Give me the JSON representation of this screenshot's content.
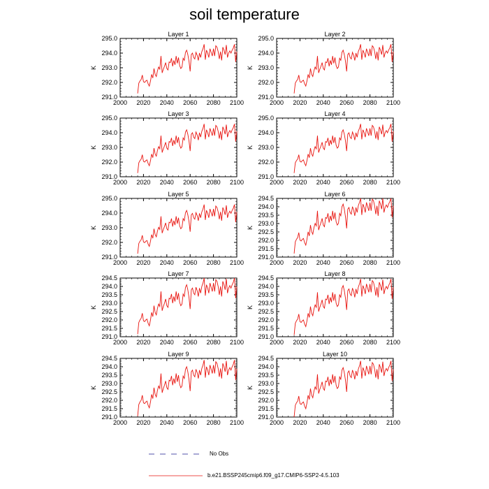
{
  "title": "soil temperature",
  "chart_data": {
    "type": "line",
    "title": "soil temperature",
    "ylabel": "K",
    "xlim": [
      2000,
      2100
    ],
    "xticks": [
      "2000",
      "2020",
      "2040",
      "2060",
      "2080",
      "2100"
    ],
    "x": [
      2015,
      2016,
      2017,
      2018,
      2019,
      2020,
      2021,
      2022,
      2023,
      2024,
      2025,
      2026,
      2027,
      2028,
      2029,
      2030,
      2031,
      2032,
      2033,
      2034,
      2035,
      2036,
      2037,
      2038,
      2039,
      2040,
      2041,
      2042,
      2043,
      2044,
      2045,
      2046,
      2047,
      2048,
      2049,
      2050,
      2051,
      2052,
      2053,
      2054,
      2055,
      2056,
      2057,
      2058,
      2059,
      2060,
      2061,
      2062,
      2063,
      2064,
      2065,
      2066,
      2067,
      2068,
      2069,
      2070,
      2071,
      2072,
      2073,
      2074,
      2075,
      2076,
      2077,
      2078,
      2079,
      2080,
      2081,
      2082,
      2083,
      2084,
      2085,
      2086,
      2087,
      2088,
      2089,
      2090,
      2091,
      2092,
      2093,
      2094,
      2095,
      2096,
      2097,
      2098,
      2099,
      2100
    ],
    "base_curve": [
      291.25,
      291.95,
      292.1,
      292.2,
      292.5,
      292.05,
      292.0,
      292.1,
      292.15,
      291.9,
      291.75,
      292.1,
      292.55,
      292.3,
      292.95,
      292.55,
      292.4,
      292.8,
      293.05,
      292.9,
      293.8,
      292.65,
      292.9,
      293.1,
      293.35,
      292.95,
      292.85,
      293.4,
      293.35,
      293.65,
      293.1,
      293.5,
      293.2,
      293.8,
      293.3,
      293.7,
      293.15,
      292.95,
      293.05,
      293.65,
      293.5,
      294.05,
      294.2,
      293.9,
      293.45,
      292.75,
      293.9,
      294.0,
      293.7,
      293.6,
      294.05,
      293.85,
      293.5,
      294.0,
      293.7,
      294.1,
      294.3,
      294.6,
      293.55,
      294.2,
      294.0,
      293.7,
      294.3,
      294.05,
      293.8,
      294.3,
      293.8,
      294.5,
      294.4,
      294.1,
      293.6,
      294.1,
      293.5,
      294.4,
      294.2,
      293.9,
      294.55,
      293.7,
      294.0,
      294.15,
      294.0,
      294.2,
      294.35,
      294.6,
      293.4,
      294.1
    ],
    "series": [
      {
        "name": "b.e21.BSSP245cmip6.f09_g17.CMIP6-SSP2-4.5.103",
        "color": "#e8140f"
      },
      {
        "name": "No Obs",
        "color": "#1a1a8c",
        "dashed": true
      }
    ],
    "panels": [
      {
        "title": "Layer 1",
        "ylim": [
          291.0,
          295.0
        ],
        "yticks": [
          "291.0",
          "292.0",
          "293.0",
          "294.0",
          "295.0"
        ],
        "offset": 0.0
      },
      {
        "title": "Layer 2",
        "ylim": [
          291.0,
          295.0
        ],
        "yticks": [
          "291.0",
          "292.0",
          "293.0",
          "294.0",
          "295.0"
        ],
        "offset": 0.0
      },
      {
        "title": "Layer 3",
        "ylim": [
          291.0,
          295.0
        ],
        "yticks": [
          "291.0",
          "292.0",
          "293.0",
          "294.0",
          "295.0"
        ],
        "offset": 0.0
      },
      {
        "title": "Layer 4",
        "ylim": [
          291.0,
          295.0
        ],
        "yticks": [
          "291.0",
          "292.0",
          "293.0",
          "294.0",
          "295.0"
        ],
        "offset": 0.0
      },
      {
        "title": "Layer 5",
        "ylim": [
          291.0,
          295.0
        ],
        "yticks": [
          "291.0",
          "292.0",
          "293.0",
          "294.0",
          "295.0"
        ],
        "offset": -0.02
      },
      {
        "title": "Layer 6",
        "ylim": [
          291.0,
          294.5
        ],
        "yticks": [
          "291.0",
          "291.5",
          "292.0",
          "292.5",
          "293.0",
          "293.5",
          "294.0",
          "294.5"
        ],
        "offset": -0.04
      },
      {
        "title": "Layer 7",
        "ylim": [
          291.0,
          294.5
        ],
        "yticks": [
          "291.0",
          "291.5",
          "292.0",
          "292.5",
          "293.0",
          "293.5",
          "294.0",
          "294.5"
        ],
        "offset": -0.1
      },
      {
        "title": "Layer 8",
        "ylim": [
          291.0,
          294.5
        ],
        "yticks": [
          "291.0",
          "291.5",
          "292.0",
          "292.5",
          "293.0",
          "293.5",
          "294.0",
          "294.5"
        ],
        "offset": -0.15
      },
      {
        "title": "Layer 9",
        "ylim": [
          291.0,
          294.5
        ],
        "yticks": [
          "291.0",
          "291.5",
          "292.0",
          "292.5",
          "293.0",
          "293.5",
          "294.0",
          "294.5"
        ],
        "offset": -0.2
      },
      {
        "title": "Layer 10",
        "ylim": [
          291.0,
          294.5
        ],
        "yticks": [
          "291.0",
          "291.5",
          "292.0",
          "292.5",
          "293.0",
          "293.5",
          "294.0",
          "294.5"
        ],
        "offset": -0.25
      }
    ],
    "legend": [
      {
        "label": "No Obs",
        "style": "dashed",
        "color": "#1a1a8c"
      },
      {
        "label": "b.e21.BSSP245cmip6.f09_g17.CMIP6-SSP2-4.5.103",
        "style": "solid",
        "color": "#e8140f"
      }
    ]
  }
}
